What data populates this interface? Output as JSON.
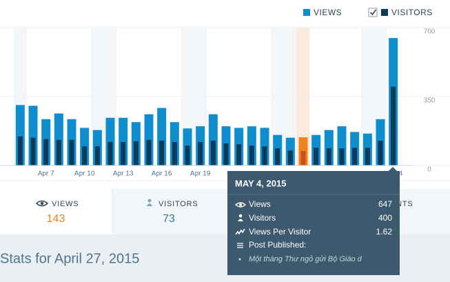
{
  "chart_data": {
    "type": "bar",
    "categories": [
      null,
      null,
      "Apr 7",
      null,
      null,
      "Apr 10",
      null,
      null,
      "Apr 13",
      null,
      null,
      "Apr 16",
      null,
      null,
      "Apr 19",
      null,
      null,
      null,
      null,
      null,
      null,
      null,
      null,
      null,
      null,
      null,
      null,
      null,
      null,
      "May 4"
    ],
    "series": [
      {
        "name": "VIEWS",
        "color": "#0e8ecf",
        "values": [
          307,
          303,
          235,
          264,
          235,
          191,
          180,
          242,
          242,
          220,
          260,
          292,
          220,
          188,
          199,
          260,
          199,
          191,
          199,
          191,
          155,
          141,
          143,
          155,
          180,
          199,
          170,
          162,
          235,
          647
        ]
      },
      {
        "name": "VISITORS",
        "color": "#0c3b5a",
        "values": [
          148,
          141,
          134,
          130,
          130,
          97,
          97,
          119,
          119,
          123,
          130,
          126,
          119,
          101,
          119,
          126,
          112,
          108,
          101,
          97,
          87,
          76,
          73,
          90,
          87,
          87,
          90,
          90,
          126,
          400
        ]
      }
    ],
    "ylim": [
      0,
      700
    ],
    "yticks": [
      0,
      350,
      700
    ],
    "grid": true,
    "highlight": 22,
    "highlight_colors": [
      "#f0821e",
      "#c9501f"
    ]
  },
  "tabs": [
    {
      "label": "VIEWS",
      "value": 143
    },
    {
      "label": "VISITORS",
      "value": 73
    },
    {
      "label": "COMMENTS"
    }
  ],
  "summary_title": "Stats for April 27, 2015",
  "tooltip": {
    "title": "MAY 4, 2015",
    "rows": [
      {
        "label": "Views",
        "value": 647
      },
      {
        "label": "Visitors",
        "value": 400
      },
      {
        "label": "Views Per Visitor",
        "value": 1.62
      }
    ],
    "post_heading": "Post Published:",
    "post_title": "Một tháng Thư ngỏ gửi Bộ Giáo d"
  }
}
